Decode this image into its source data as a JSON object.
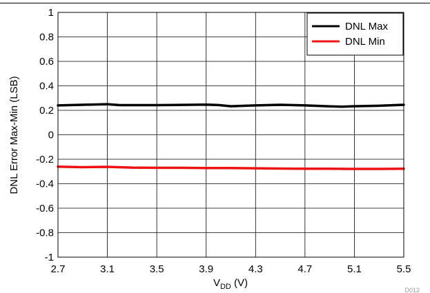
{
  "chart_data": {
    "type": "line",
    "xlabel_main": "V",
    "xlabel_sub": "DD",
    "xlabel_unit": " (V)",
    "ylabel": "DNL Error Max-Min (LSB)",
    "xlim": [
      2.7,
      5.5
    ],
    "ylim": [
      -1,
      1
    ],
    "x_ticks": [
      "2.7",
      "3.1",
      "3.5",
      "3.9",
      "4.3",
      "4.7",
      "5.1",
      "5.5"
    ],
    "y_ticks": [
      "1",
      "0.8",
      "0.6",
      "0.4",
      "0.2",
      "0",
      "-0.2",
      "-0.4",
      "-0.6",
      "-0.8",
      "-1"
    ],
    "grid": true,
    "legend_position": "top-right",
    "series": [
      {
        "name": "DNL Max",
        "color": "#000000",
        "x": [
          2.7,
          2.9,
          3.1,
          3.2,
          3.5,
          3.9,
          4.0,
          4.1,
          4.3,
          4.5,
          4.7,
          4.9,
          5.0,
          5.1,
          5.3,
          5.5
        ],
        "y": [
          0.24,
          0.245,
          0.25,
          0.242,
          0.242,
          0.247,
          0.243,
          0.233,
          0.24,
          0.245,
          0.24,
          0.232,
          0.23,
          0.233,
          0.237,
          0.245
        ]
      },
      {
        "name": "DNL Min",
        "color": "#ee1111",
        "x": [
          2.7,
          2.9,
          3.1,
          3.3,
          3.5,
          3.7,
          3.9,
          4.1,
          4.3,
          4.5,
          4.7,
          4.9,
          5.1,
          5.3,
          5.5
        ],
        "y": [
          -0.26,
          -0.265,
          -0.262,
          -0.268,
          -0.27,
          -0.27,
          -0.272,
          -0.272,
          -0.274,
          -0.276,
          -0.278,
          -0.278,
          -0.279,
          -0.279,
          -0.278
        ]
      }
    ],
    "footnote": "D012"
  }
}
